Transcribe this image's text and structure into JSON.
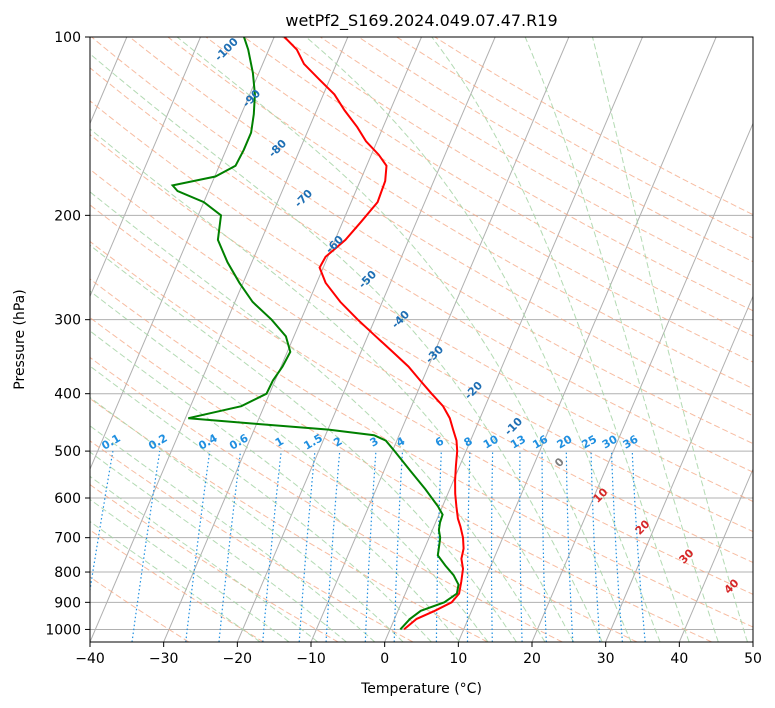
{
  "chart_data": {
    "type": "line",
    "subtype": "skew-t log-p diagram",
    "title": "wetPf2_S169.2024.049.07.47.R19",
    "xlabel": "Temperature (°C)",
    "ylabel": "Pressure (hPa)",
    "xlim": [
      -40,
      50
    ],
    "ylim": [
      1050,
      100
    ],
    "y_scale": "log",
    "x_ticks": [
      -40,
      -30,
      -20,
      -10,
      0,
      10,
      20,
      30,
      40,
      50
    ],
    "y_ticks": [
      1000,
      900,
      800,
      700,
      600,
      500,
      400,
      300,
      200,
      100
    ],
    "grid": true,
    "series": [
      {
        "color": "#ff0000",
        "points": [
          [
            1000,
            1.9
          ],
          [
            960,
            3.0
          ],
          [
            930,
            5.0
          ],
          [
            900,
            6.8
          ],
          [
            870,
            7.3
          ],
          [
            830,
            6.9
          ],
          [
            790,
            6.4
          ],
          [
            760,
            5.6
          ],
          [
            730,
            5.3
          ],
          [
            700,
            4.6
          ],
          [
            670,
            3.6
          ],
          [
            650,
            2.8
          ],
          [
            620,
            1.9
          ],
          [
            590,
            1.0
          ],
          [
            560,
            0.2
          ],
          [
            530,
            -0.5
          ],
          [
            500,
            -1.2
          ],
          [
            480,
            -1.9
          ],
          [
            460,
            -3.0
          ],
          [
            440,
            -4.1
          ],
          [
            420,
            -5.7
          ],
          [
            400,
            -8.0
          ],
          [
            380,
            -10.3
          ],
          [
            360,
            -12.7
          ],
          [
            340,
            -15.7
          ],
          [
            320,
            -18.9
          ],
          [
            300,
            -22.3
          ],
          [
            280,
            -25.7
          ],
          [
            260,
            -28.8
          ],
          [
            245,
            -30.5
          ],
          [
            235,
            -30.3
          ],
          [
            220,
            -28.6
          ],
          [
            205,
            -27.5
          ],
          [
            190,
            -26.4
          ],
          [
            175,
            -26.6
          ],
          [
            165,
            -27.3
          ],
          [
            158,
            -29.0
          ],
          [
            150,
            -31.5
          ],
          [
            142,
            -33.5
          ],
          [
            133,
            -36.2
          ],
          [
            125,
            -38.5
          ],
          [
            118,
            -41.4
          ],
          [
            111,
            -44.4
          ],
          [
            105,
            -46.2
          ],
          [
            100,
            -48.6
          ]
        ]
      },
      {
        "color": "#008000",
        "points": [
          [
            1000,
            1.4
          ],
          [
            960,
            2.1
          ],
          [
            930,
            3.1
          ],
          [
            900,
            5.8
          ],
          [
            870,
            7.0
          ],
          [
            840,
            6.7
          ],
          [
            810,
            5.5
          ],
          [
            780,
            3.8
          ],
          [
            750,
            2.2
          ],
          [
            720,
            1.8
          ],
          [
            700,
            1.5
          ],
          [
            680,
            0.9
          ],
          [
            660,
            0.6
          ],
          [
            640,
            0.5
          ],
          [
            620,
            -0.6
          ],
          [
            580,
            -3.3
          ],
          [
            540,
            -6.4
          ],
          [
            500,
            -9.7
          ],
          [
            480,
            -11.5
          ],
          [
            470,
            -13.4
          ],
          [
            460,
            -19.9
          ],
          [
            450,
            -29.8
          ],
          [
            440,
            -39.6
          ],
          [
            420,
            -33.1
          ],
          [
            400,
            -30.4
          ],
          [
            380,
            -30.3
          ],
          [
            360,
            -29.8
          ],
          [
            340,
            -29.6
          ],
          [
            320,
            -31.1
          ],
          [
            300,
            -34.0
          ],
          [
            280,
            -37.6
          ],
          [
            260,
            -40.5
          ],
          [
            240,
            -43.3
          ],
          [
            220,
            -45.9
          ],
          [
            200,
            -46.9
          ],
          [
            190,
            -50.0
          ],
          [
            182,
            -54.2
          ],
          [
            178,
            -55.2
          ],
          [
            172,
            -49.9
          ],
          [
            165,
            -47.8
          ],
          [
            155,
            -47.6
          ],
          [
            145,
            -47.6
          ],
          [
            135,
            -48.3
          ],
          [
            125,
            -49.3
          ],
          [
            115,
            -50.8
          ],
          [
            105,
            -52.8
          ],
          [
            100,
            -54.1
          ]
        ]
      }
    ],
    "dry_adiabat_labels": [
      "-100",
      "-90",
      "-80",
      "-70",
      "-60",
      "-50",
      "-40",
      "-30",
      "-20",
      "-10"
    ],
    "moist_adiabat_labels": [
      "0",
      "10",
      "20",
      "30",
      "40"
    ],
    "mixing_ratio_labels": [
      "0.1",
      "0.2",
      "0.4",
      "0.6",
      "1",
      "1.5",
      "2",
      "3",
      "4",
      "6",
      "8",
      "10",
      "13",
      "16",
      "20",
      "25",
      "30",
      "36"
    ],
    "mixing_ratio_values": [
      0.1,
      0.2,
      0.4,
      0.6,
      1,
      1.5,
      2,
      3,
      4,
      6,
      8,
      10,
      13,
      16,
      20,
      25,
      30,
      36
    ],
    "colors": {
      "temperature": "#ff0000",
      "dewpoint": "#008000",
      "isotherm": "#b0b0b0",
      "isobar": "#b0b0b0",
      "dry_adiabat": "#f4a582",
      "moist_adiabat": "#a6d4a6",
      "mixing_ratio": "#1f8fe0",
      "dry_adiabat_label": "#1f6fb4",
      "moist_adiabat_label": "#d62728",
      "mixing_ratio_label": "#1f8fe0"
    }
  }
}
